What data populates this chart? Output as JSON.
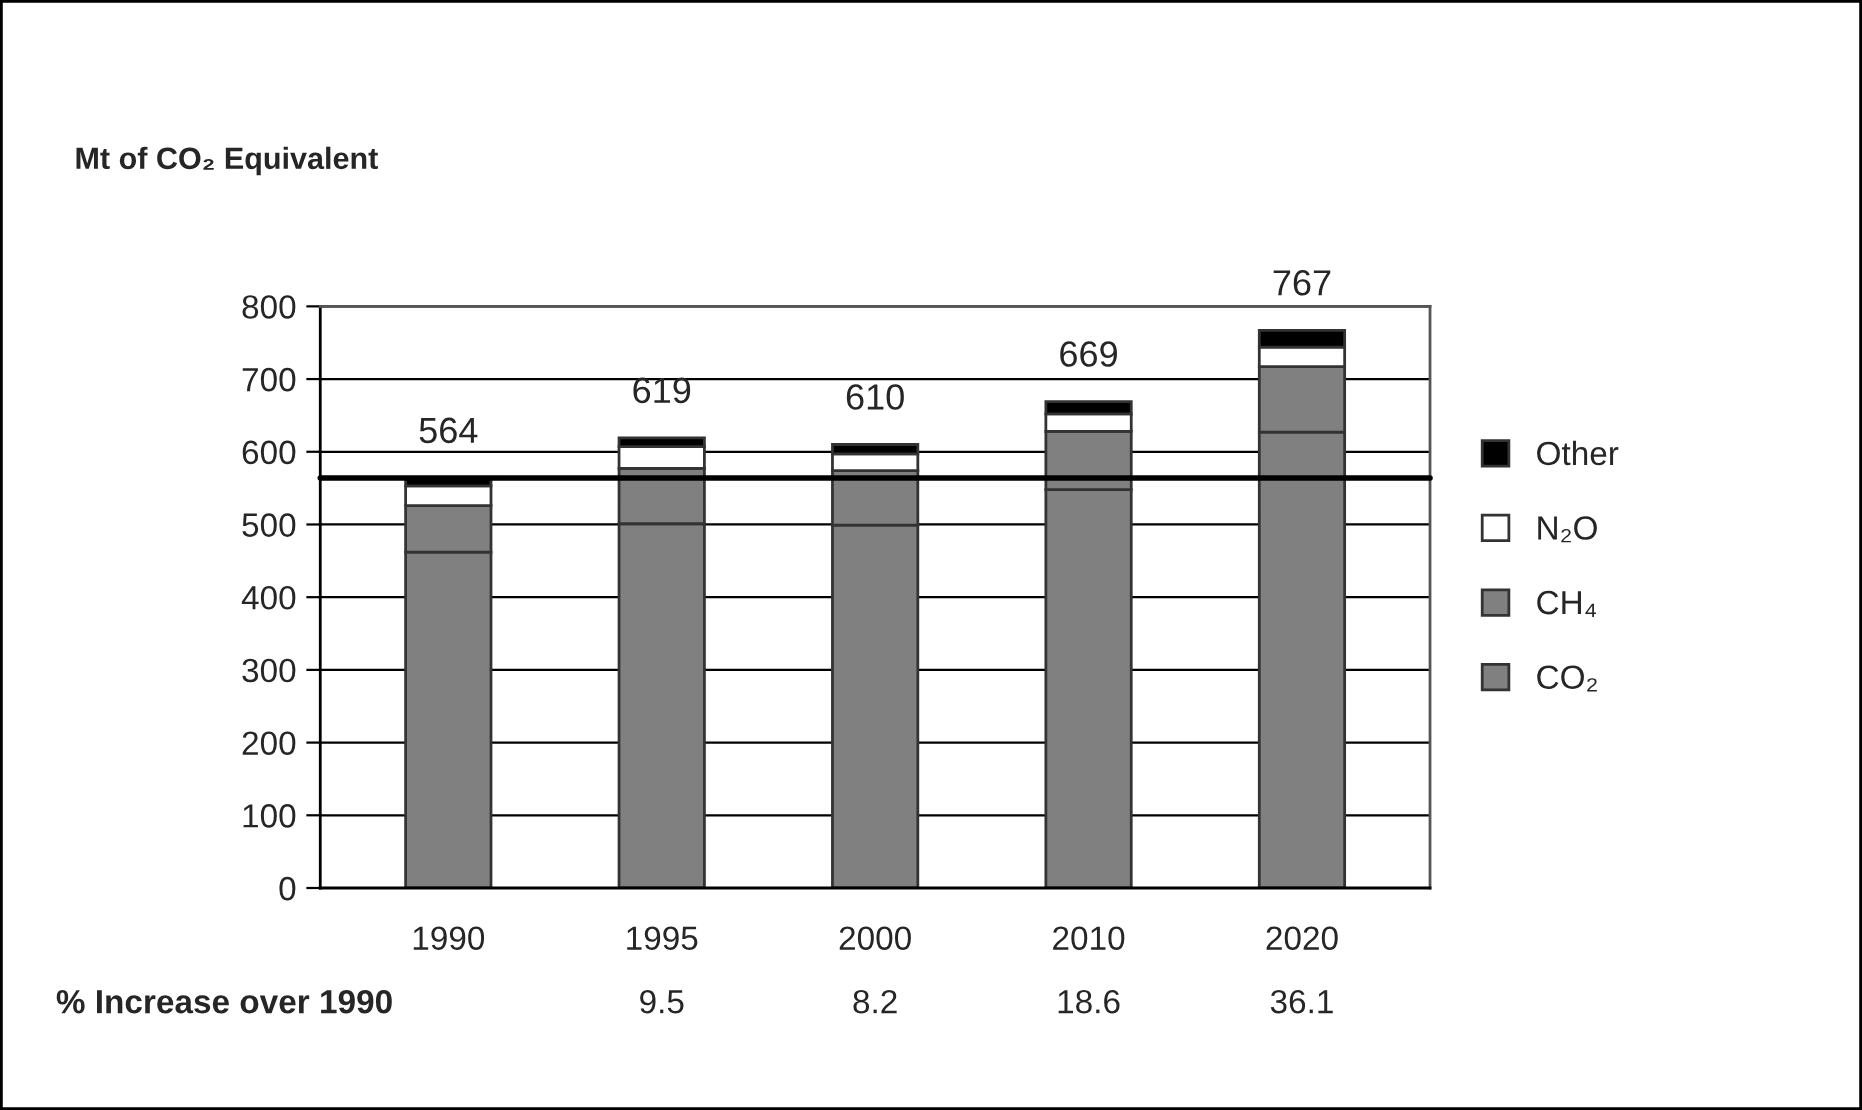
{
  "chart_data": {
    "type": "bar",
    "stacked": true,
    "title": "Mt of CO₂ Equivalent",
    "categories": [
      "1990",
      "1995",
      "2000",
      "2010",
      "2020"
    ],
    "series": [
      {
        "name": "CO₂",
        "color": "#808080",
        "values": [
          462,
          501,
          499,
          548,
          627
        ]
      },
      {
        "name": "CH₄",
        "color": "#808080",
        "values": [
          64,
          76,
          75,
          80,
          90
        ]
      },
      {
        "name": "N₂O",
        "color": "#ffffff",
        "values": [
          27,
          30,
          23,
          24,
          27
        ]
      },
      {
        "name": "Other",
        "color": "#000000",
        "values": [
          11,
          12,
          13,
          17,
          23
        ]
      }
    ],
    "totals": [
      "564",
      "619",
      "610",
      "669",
      "767"
    ],
    "ylim": [
      0,
      800
    ],
    "yticks": [
      0,
      100,
      200,
      300,
      400,
      500,
      600,
      700,
      800
    ],
    "grid": "y",
    "legend": "right",
    "ref_lines": [
      {
        "axis": "y",
        "value": 564,
        "color": "#000000"
      }
    ],
    "annotations": [
      "% Increase over 1990",
      "9.5",
      "8.2",
      "18.6",
      "36.1"
    ]
  }
}
